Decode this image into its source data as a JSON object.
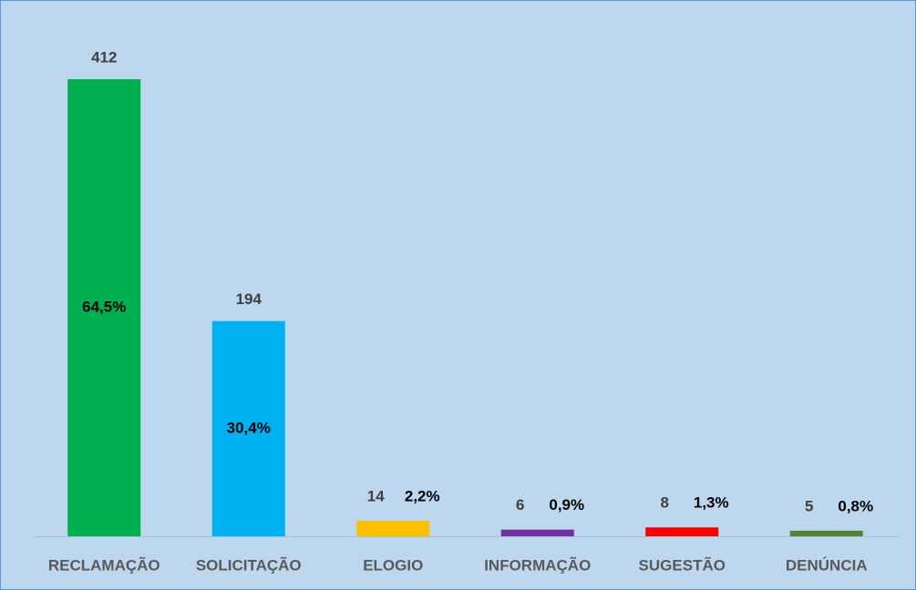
{
  "chart_data": {
    "type": "bar",
    "categories": [
      "RECLAMAÇÃO",
      "SOLICITAÇÃO",
      "ELOGIO",
      "INFORMAÇÃO",
      "SUGESTÃO",
      "DENÚNCIA"
    ],
    "values": [
      412,
      194,
      14,
      6,
      8,
      5
    ],
    "colors": [
      "#00b050",
      "#00b0f0",
      "#ffc000",
      "#7030a0",
      "#ff0000",
      "#548235"
    ],
    "shares": {
      "values": [
        64.5,
        30.4,
        2.2,
        0.9,
        1.3,
        0.8
      ],
      "value_labels": [
        "64,5%",
        "30,4%",
        "2,2%",
        "0,9%",
        "1,3%",
        "0,8%"
      ]
    }
  }
}
